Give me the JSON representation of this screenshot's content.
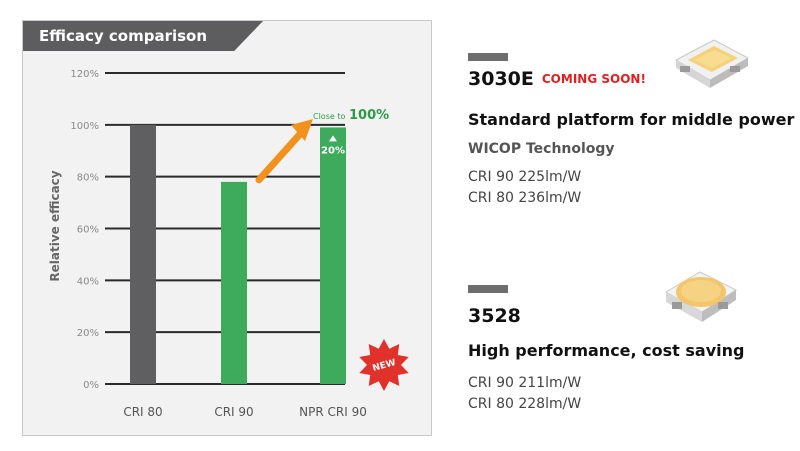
{
  "panel": {
    "title": "Efficacy comparison"
  },
  "chart_data": {
    "type": "bar",
    "title": "Efficacy comparison",
    "ylabel": "Relative efficacy",
    "ylim": [
      0,
      120
    ],
    "yticks": [
      "0%",
      "20%",
      "40%",
      "60%",
      "80%",
      "100%",
      "120%"
    ],
    "categories": [
      "CRI 80",
      "CRI 90",
      "NPR CRI 90"
    ],
    "values": [
      100,
      78,
      99
    ],
    "colors": [
      "#5f5f61",
      "#3daa5c",
      "#3daa5c"
    ],
    "annotation": {
      "prefix": "Close to",
      "value": "100%",
      "gain": "20%"
    },
    "badge": "NEW",
    "grid": true
  },
  "products": [
    {
      "name": "3030E",
      "badge": "COMING SOON!",
      "headline": "Standard platform for middle power",
      "tech": "WICOP Technology",
      "specs": [
        "CRI 90 225lm/W",
        "CRI 80 236lm/W"
      ]
    },
    {
      "name": "3528",
      "headline": "High performance, cost saving",
      "specs": [
        "CRI 90 211lm/W",
        "CRI 80 228lm/W"
      ]
    }
  ],
  "colors": {
    "bar_gray": "#5f5f61",
    "bar_green": "#3daa5c",
    "arrow": "#f2921e",
    "badge_red": "#e02020",
    "title_bg": "#5d5d5f"
  }
}
